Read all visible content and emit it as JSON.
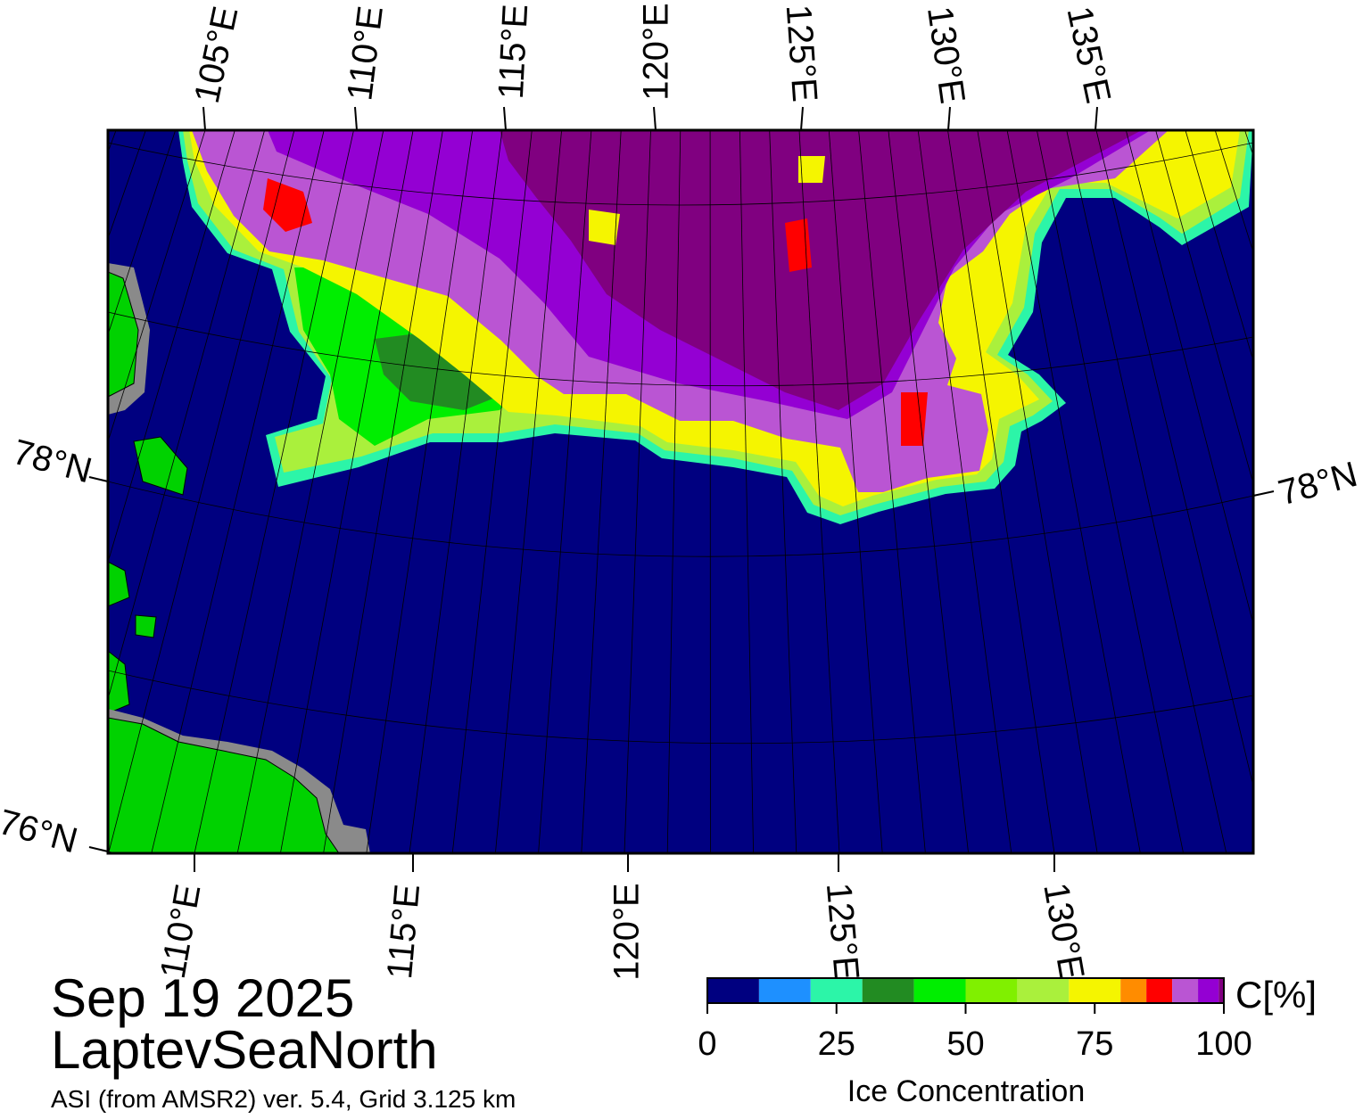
{
  "map": {
    "title": "Sep 19 2025",
    "region": "LaptevSeaNorth",
    "subtitle": "ASI (from AMSR2) ver. 5.4,  Grid 3.125 km",
    "lon_labels_top": [
      "105°E",
      "110°E",
      "115°E",
      "120°E",
      "125°E",
      "130°E",
      "135°E"
    ],
    "lon_labels_bottom": [
      "110°E",
      "115°E",
      "120°E",
      "125°E",
      "130°E"
    ],
    "lat_labels_left": [
      "78°N",
      "76°N"
    ],
    "lat_labels_right": [
      "78°N"
    ]
  },
  "colorbar": {
    "label": "Ice Concentration",
    "unit": "C[%]",
    "lim": [
      0,
      100
    ],
    "ticks": [
      0,
      25,
      50,
      75,
      100
    ],
    "bounds": [
      0,
      10,
      20,
      30,
      40,
      50,
      60,
      70,
      80,
      85,
      90,
      95,
      99,
      100
    ],
    "colors": [
      "#000080",
      "#1e90ff",
      "#2cf5a8",
      "#228b22",
      "#00ee00",
      "#80f000",
      "#aaf03c",
      "#f5f500",
      "#ff8c00",
      "#ff0000",
      "#ba55d3",
      "#9400d3",
      "#800080"
    ]
  }
}
